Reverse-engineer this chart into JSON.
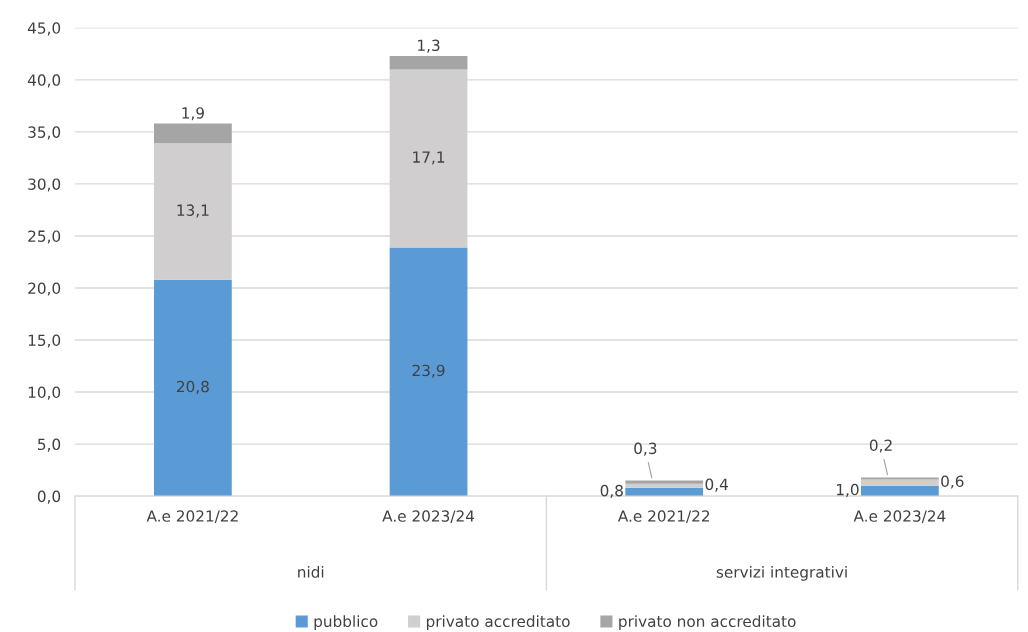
{
  "chart_data": {
    "type": "bar",
    "stacked": true,
    "categories": [
      "A.e 2021/22",
      "A.e 2023/24",
      "A.e 2021/22",
      "A.e 2023/24"
    ],
    "annotations": [
      "nidi",
      "servizi integrativi"
    ],
    "series": [
      {
        "name": "pubblico",
        "color": "#5b9bd5",
        "values": [
          20.8,
          23.9,
          0.8,
          1.0
        ],
        "value_labels": [
          "20,8",
          "23,9",
          "0,8",
          "1,0"
        ]
      },
      {
        "name": "privato accreditato",
        "color": "#d0cece",
        "values": [
          13.1,
          17.1,
          0.4,
          0.6
        ],
        "value_labels": [
          "13,1",
          "17,1",
          "0,4",
          "0,6"
        ]
      },
      {
        "name": "privato non accreditato",
        "color": "#a5a5a5",
        "values": [
          1.9,
          1.3,
          0.3,
          0.2
        ],
        "value_labels": [
          "1,9",
          "1,3",
          "0,3",
          "0,2"
        ]
      }
    ],
    "ylim": [
      0,
      45
    ],
    "yticks": [
      {
        "value": 0,
        "label": "0,0"
      },
      {
        "value": 5,
        "label": "5,0"
      },
      {
        "value": 10,
        "label": "10,0"
      },
      {
        "value": 15,
        "label": "15,0"
      },
      {
        "value": 20,
        "label": "20,0"
      },
      {
        "value": 25,
        "label": "25,0"
      },
      {
        "value": 30,
        "label": "30,0"
      },
      {
        "value": 35,
        "label": "35,0"
      },
      {
        "value": 40,
        "label": "40,0"
      },
      {
        "value": 45,
        "label": "45,0"
      }
    ],
    "grid": "y",
    "legend": "bottom"
  }
}
